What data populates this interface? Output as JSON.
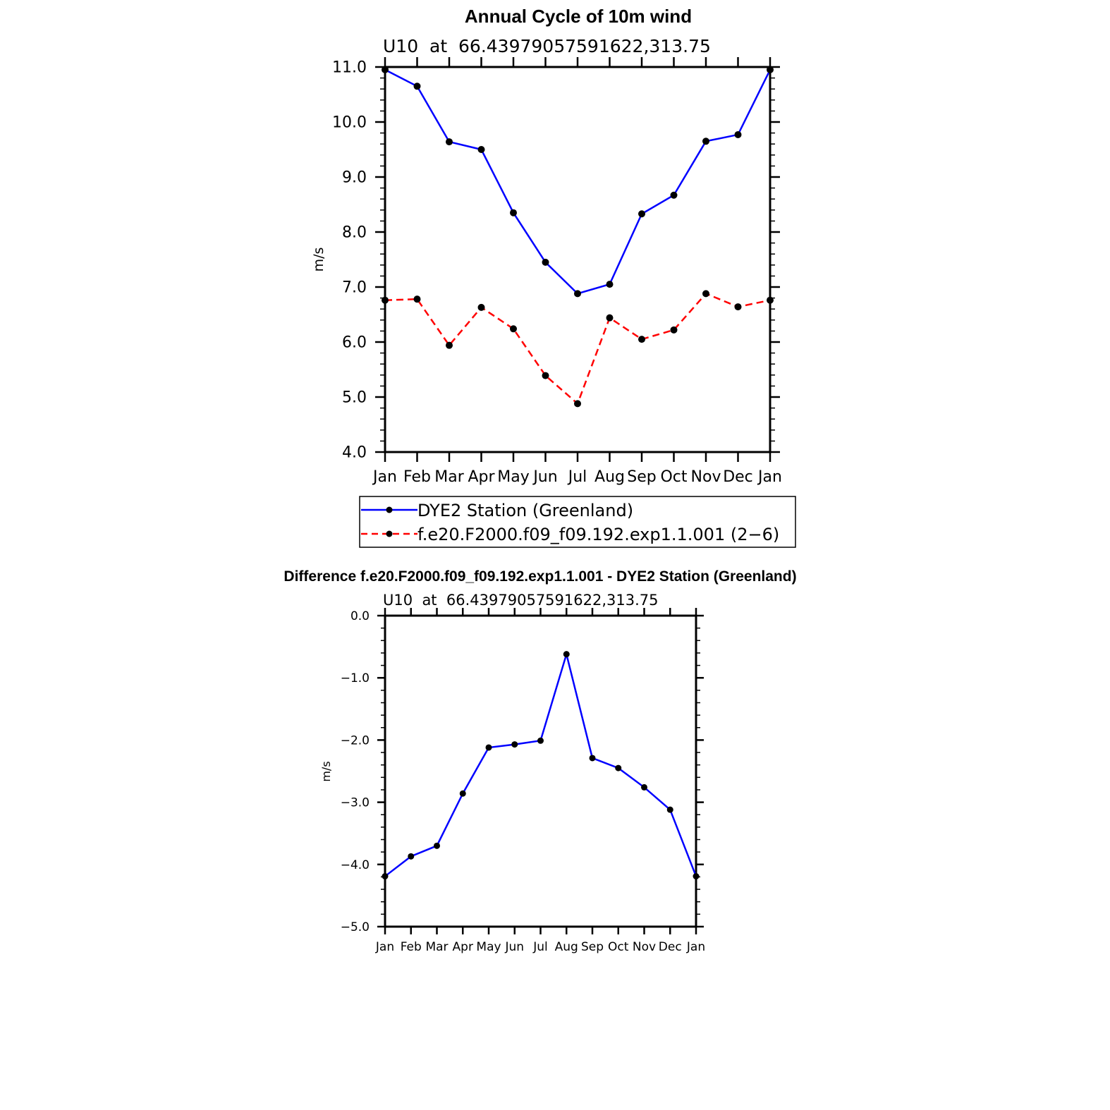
{
  "chart_data": [
    {
      "type": "line",
      "title": "Annual Cycle of 10m wind",
      "subtitle": "U10  at  66.43979057591622,313.75",
      "xlabel": "",
      "ylabel": "m/s",
      "categories": [
        "Jan",
        "Feb",
        "Mar",
        "Apr",
        "May",
        "Jun",
        "Jul",
        "Aug",
        "Sep",
        "Oct",
        "Nov",
        "Dec",
        "Jan"
      ],
      "ylim": [
        4.0,
        11.0
      ],
      "yticks": [
        "4.0",
        "5.0",
        "6.0",
        "7.0",
        "8.0",
        "9.0",
        "10.0",
        "11.0"
      ],
      "legend_position": "bottom",
      "series": [
        {
          "name": "DYE2 Station (Greenland)",
          "color": "#0000ff",
          "style": "solid",
          "values": [
            10.95,
            10.65,
            9.64,
            9.5,
            8.35,
            7.45,
            6.88,
            7.05,
            8.33,
            8.67,
            9.65,
            9.77,
            10.95
          ]
        },
        {
          "name": "f.e20.F2000.f09_f09.192.exp1.1.001 (2−6)",
          "color": "#ff0000",
          "style": "dashed",
          "values": [
            6.76,
            6.78,
            5.94,
            6.63,
            6.24,
            5.39,
            4.88,
            6.44,
            6.05,
            6.22,
            6.88,
            6.64,
            6.76
          ]
        }
      ]
    },
    {
      "type": "line",
      "title": "Difference f.e20.F2000.f09_f09.192.exp1.1.001 - DYE2 Station (Greenland)",
      "subtitle": "U10  at  66.43979057591622,313.75",
      "xlabel": "",
      "ylabel": "m/s",
      "categories": [
        "Jan",
        "Feb",
        "Mar",
        "Apr",
        "May",
        "Jun",
        "Jul",
        "Aug",
        "Sep",
        "Oct",
        "Nov",
        "Dec",
        "Jan"
      ],
      "ylim": [
        -5.0,
        0.0
      ],
      "yticks": [
        "−5.0",
        "−4.0",
        "−3.0",
        "−2.0",
        "−1.0",
        "0.0"
      ],
      "series": [
        {
          "name": "Difference",
          "color": "#0000ff",
          "style": "solid",
          "values": [
            -4.19,
            -3.87,
            -3.7,
            -2.86,
            -2.12,
            -2.07,
            -2.01,
            -0.62,
            -2.29,
            -2.45,
            -2.76,
            -3.12,
            -4.19
          ]
        }
      ]
    }
  ]
}
